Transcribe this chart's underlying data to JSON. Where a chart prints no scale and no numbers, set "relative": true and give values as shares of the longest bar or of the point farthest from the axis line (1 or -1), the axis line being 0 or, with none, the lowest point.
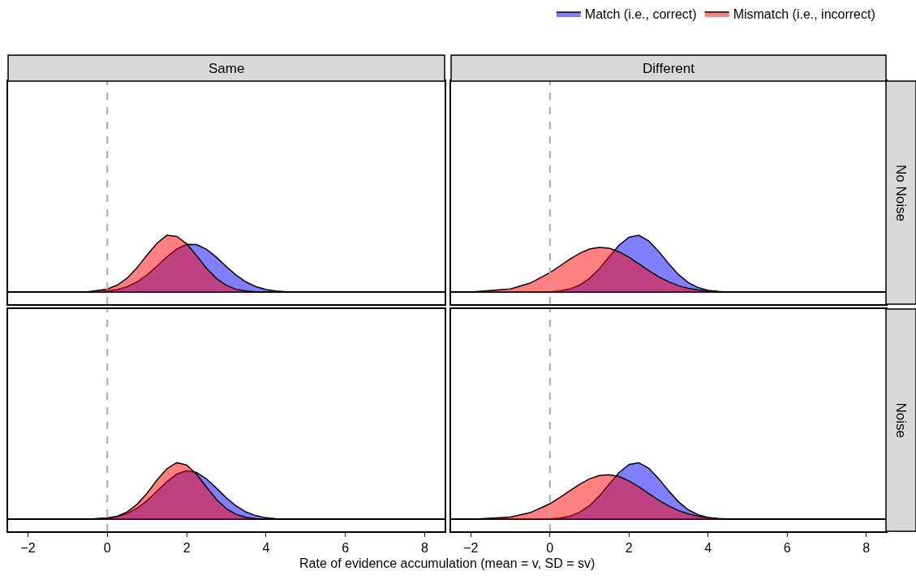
{
  "chart_data": [
    {
      "type": "area",
      "title": "Same",
      "relative": true,
      "legend": "top right",
      "tick_labels": false,
      "xlim": [
        -2.5,
        8.5
      ],
      "xticks": [
        -2,
        0,
        2,
        4,
        6,
        8
      ],
      "x": [
        -2,
        -1,
        -0.5,
        0,
        0.25,
        0.5,
        0.75,
        1,
        1.25,
        1.5,
        1.75,
        2,
        2.25,
        2.5,
        2.75,
        3,
        3.25,
        3.5,
        3.75,
        4,
        4.25,
        4.5,
        5,
        6,
        8
      ],
      "ref_lines": [
        {
          "axis": "x",
          "value": 0,
          "color": "#aaaaaa",
          "line_style": "dashed"
        }
      ],
      "series": [
        {
          "name": "Match (i.e., correct)",
          "color": "#8080ff",
          "values": [
            0,
            0,
            0.003,
            0.021,
            0.048,
            0.098,
            0.182,
            0.303,
            0.456,
            0.62,
            0.76,
            0.84,
            0.838,
            0.755,
            0.614,
            0.45,
            0.298,
            0.178,
            0.096,
            0.047,
            0.02,
            0.008,
            0.001,
            0,
            0
          ]
        },
        {
          "name": "Mismatch (i.e., incorrect)",
          "color": "#ff8080",
          "values": [
            0,
            0.001,
            0.007,
            0.054,
            0.124,
            0.247,
            0.43,
            0.652,
            0.859,
            1,
            0.98,
            0.851,
            0.643,
            0.422,
            0.241,
            0.12,
            0.052,
            0.02,
            0.006,
            0.002,
            0.001,
            0,
            0,
            0,
            0
          ]
        }
      ]
    },
    {
      "type": "area",
      "title": "Different",
      "annotations": [
        "No Noise"
      ],
      "relative": true,
      "tick_labels": false,
      "xlim": [
        -2.5,
        8.5
      ],
      "xticks": [
        -2,
        0,
        2,
        4,
        6,
        8
      ],
      "x": [
        -2,
        -1,
        -0.5,
        0,
        0.25,
        0.5,
        0.75,
        1,
        1.25,
        1.5,
        1.75,
        2,
        2.25,
        2.5,
        2.75,
        3,
        3.25,
        3.5,
        3.75,
        4,
        4.25,
        4.5,
        5,
        6,
        8
      ],
      "ref_lines": [
        {
          "axis": "x",
          "value": 0,
          "color": "#aaaaaa",
          "line_style": "dashed"
        }
      ],
      "series": [
        {
          "color": "#8080ff",
          "values": [
            0,
            0,
            0.001,
            0.008,
            0.022,
            0.056,
            0.124,
            0.241,
            0.414,
            0.624,
            0.828,
            0.967,
            1,
            0.901,
            0.718,
            0.504,
            0.311,
            0.169,
            0.081,
            0.034,
            0.013,
            0.004,
            0,
            0,
            0
          ]
        },
        {
          "color": "#ff8080",
          "values": [
            0.004,
            0.058,
            0.16,
            0.344,
            0.46,
            0.578,
            0.683,
            0.758,
            0.789,
            0.773,
            0.71,
            0.614,
            0.498,
            0.38,
            0.272,
            0.183,
            0.116,
            0.069,
            0.038,
            0.02,
            0.01,
            0.005,
            0.001,
            0,
            0
          ]
        }
      ]
    },
    {
      "type": "area",
      "xlabel": "Rate of evidence accumulation (mean = v, SD = sv)",
      "relative": true,
      "tick_labels": "x",
      "xlim": [
        -2.5,
        8.5
      ],
      "xticks": [
        -2,
        0,
        2,
        4,
        6,
        8
      ],
      "x": [
        -2,
        -1,
        -0.5,
        0,
        0.25,
        0.5,
        0.75,
        1,
        1.25,
        1.5,
        1.75,
        2,
        2.25,
        2.5,
        2.75,
        3,
        3.25,
        3.5,
        3.75,
        4,
        4.25,
        4.5,
        5,
        6,
        8
      ],
      "ref_lines": [
        {
          "axis": "x",
          "value": 0,
          "color": "#aaaaaa",
          "line_style": "dashed"
        }
      ],
      "series": [
        {
          "color": "#8080ff",
          "values": [
            0,
            0,
            0.003,
            0.021,
            0.05,
            0.104,
            0.196,
            0.329,
            0.494,
            0.664,
            0.798,
            0.859,
            0.827,
            0.713,
            0.55,
            0.379,
            0.234,
            0.129,
            0.064,
            0.028,
            0.011,
            0.004,
            0,
            0,
            0
          ]
        },
        {
          "color": "#ff8080",
          "values": [
            0,
            0,
            0.002,
            0.021,
            0.056,
            0.131,
            0.264,
            0.46,
            0.69,
            0.892,
            1,
            0.958,
            0.795,
            0.569,
            0.351,
            0.187,
            0.086,
            0.034,
            0.012,
            0.003,
            0.001,
            0,
            0,
            0,
            0
          ]
        }
      ]
    },
    {
      "type": "area",
      "annotations": [
        "Noise"
      ],
      "relative": true,
      "tick_labels": "x",
      "xlim": [
        -2.5,
        8.5
      ],
      "xticks": [
        -2,
        0,
        2,
        4,
        6,
        8
      ],
      "x": [
        -2,
        -1,
        -0.5,
        0,
        0.25,
        0.5,
        0.75,
        1,
        1.25,
        1.5,
        1.75,
        2,
        2.25,
        2.5,
        2.75,
        3,
        3.25,
        3.5,
        3.75,
        4,
        4.25,
        4.5,
        5,
        6,
        8
      ],
      "ref_lines": [
        {
          "axis": "x",
          "value": 0,
          "color": "#aaaaaa",
          "line_style": "dashed"
        }
      ],
      "series": [
        {
          "color": "#8080ff",
          "values": [
            0,
            0,
            0.001,
            0.008,
            0.022,
            0.056,
            0.124,
            0.241,
            0.414,
            0.624,
            0.828,
            0.967,
            1,
            0.901,
            0.718,
            0.504,
            0.311,
            0.169,
            0.081,
            0.034,
            0.013,
            0.004,
            0,
            0,
            0
          ]
        },
        {
          "color": "#ff8080",
          "values": [
            0.002,
            0.039,
            0.118,
            0.276,
            0.384,
            0.503,
            0.618,
            0.714,
            0.774,
            0.789,
            0.755,
            0.679,
            0.574,
            0.455,
            0.339,
            0.238,
            0.156,
            0.097,
            0.056,
            0.031,
            0.016,
            0.008,
            0.001,
            0,
            0
          ]
        }
      ]
    }
  ]
}
